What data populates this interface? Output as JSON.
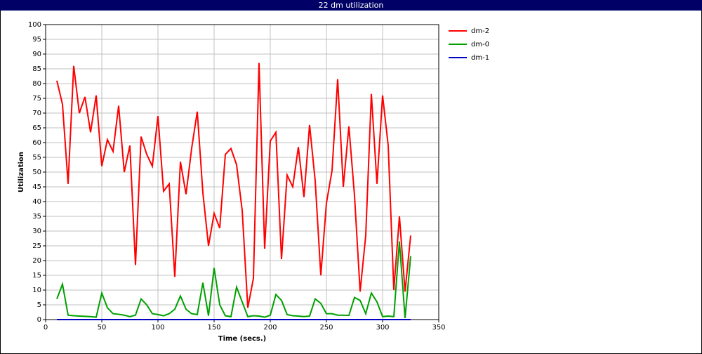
{
  "chart_data": {
    "type": "line",
    "title": "22 dm utilization",
    "x_label": "Time (secs.)",
    "y_label": "Utilization",
    "x": [
      10,
      15,
      20,
      25,
      30,
      35,
      40,
      45,
      50,
      55,
      60,
      65,
      70,
      75,
      80,
      85,
      90,
      95,
      100,
      105,
      110,
      115,
      120,
      125,
      130,
      135,
      140,
      145,
      150,
      155,
      160,
      165,
      170,
      175,
      180,
      185,
      190,
      195,
      200,
      205,
      210,
      215,
      220,
      225,
      230,
      235,
      240,
      245,
      250,
      255,
      260,
      265,
      270,
      275,
      280,
      285,
      290,
      295,
      300,
      305,
      310,
      315,
      320,
      325
    ],
    "series": [
      {
        "name": "dm-2",
        "color": "#ff0000",
        "values": [
          81,
          73,
          46,
          86,
          70,
          75.5,
          63.5,
          76,
          52,
          61,
          57,
          72.5,
          50,
          59,
          18.5,
          62,
          56,
          52,
          69,
          43.5,
          46,
          14.5,
          53.5,
          42.5,
          58,
          70.5,
          43,
          25,
          36,
          31,
          56,
          58,
          52.5,
          37,
          4,
          14,
          87,
          24,
          60.5,
          63.5,
          20.5,
          49,
          45,
          58.5,
          41.5,
          66,
          47,
          15,
          39.5,
          50.5,
          81.5,
          45,
          65.5,
          42,
          9.5,
          28.5,
          76.5,
          46,
          76,
          59,
          10,
          35,
          9.5,
          28.5
        ]
      },
      {
        "name": "dm-0",
        "color": "#00a000",
        "values": [
          7,
          12,
          1.5,
          1.3,
          1.2,
          1.1,
          1,
          0.8,
          9,
          4,
          2,
          1.8,
          1.5,
          1,
          1.5,
          7,
          5,
          2,
          1.7,
          1.3,
          2,
          3.5,
          8,
          3.5,
          2,
          1.7,
          12.5,
          1.3,
          17.5,
          5,
          1.3,
          1,
          11,
          6,
          1,
          1.3,
          1.2,
          0.8,
          1.5,
          8.5,
          6.5,
          1.7,
          1.3,
          1.2,
          1,
          1.2,
          7,
          5.5,
          2,
          2,
          1.5,
          1.5,
          1.4,
          7.5,
          6.5,
          2,
          9,
          6,
          1,
          1.2,
          1,
          26.5,
          0.5,
          21.5
        ]
      },
      {
        "name": "dm-1",
        "color": "#0000c0",
        "values": [
          0,
          0,
          0,
          0,
          0,
          0,
          0,
          0,
          0,
          0,
          0,
          0,
          0,
          0,
          0,
          0,
          0,
          0,
          0,
          0,
          0,
          0,
          0,
          0,
          0,
          0,
          0,
          0,
          0,
          0,
          0,
          0,
          0,
          0,
          0,
          0,
          0,
          0,
          0,
          0,
          0,
          0,
          0,
          0,
          0,
          0,
          0,
          0,
          0,
          0,
          0,
          0,
          0,
          0,
          0,
          0,
          0,
          0,
          0,
          0,
          0,
          0,
          0,
          0
        ]
      }
    ],
    "xlim": [
      0,
      350
    ],
    "xticks": [
      0,
      50,
      100,
      150,
      200,
      250,
      300,
      350
    ],
    "ylim": [
      0,
      100
    ],
    "yticks": [
      0,
      5,
      10,
      15,
      20,
      25,
      30,
      35,
      40,
      45,
      50,
      55,
      60,
      65,
      70,
      75,
      80,
      85,
      90,
      95,
      100
    ],
    "grid": true,
    "legend": "right"
  }
}
